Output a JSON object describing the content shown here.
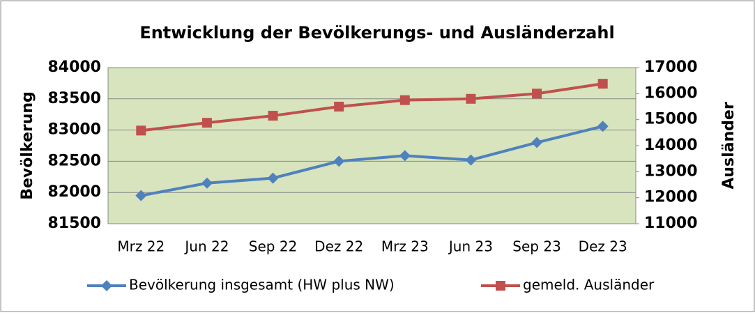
{
  "chart_data": {
    "type": "line",
    "title": "Entwicklung der Bevölkerungs- und Ausländerzahl",
    "categories": [
      "Mrz 22",
      "Jun 22",
      "Sep 22",
      "Dez 22",
      "Mrz 23",
      "Jun 23",
      "Sep 23",
      "Dez 23"
    ],
    "series": [
      {
        "name": "Bevölkerung insgesamt (HW plus NW)",
        "color": "#4f81bd",
        "marker": "diamond",
        "values": [
          81950,
          82150,
          82230,
          82500,
          82590,
          82520,
          82800,
          83060
        ]
      },
      {
        "name": "gemeld. Ausländer",
        "color": "#c0504d",
        "marker": "square",
        "axis": "y2",
        "values": [
          14580,
          14880,
          15150,
          15500,
          15750,
          15800,
          16000,
          16380
        ]
      }
    ],
    "ylabel": "Bevölkerung",
    "y2label": "Ausländer",
    "ylim": [
      81500,
      84000
    ],
    "yticks": [
      81500,
      82000,
      82500,
      83000,
      83500,
      84000
    ],
    "y2lim": [
      11000,
      17000
    ],
    "y2ticks": [
      11000,
      12000,
      13000,
      14000,
      15000,
      16000,
      17000
    ],
    "grid": true,
    "legend": "bottom"
  }
}
